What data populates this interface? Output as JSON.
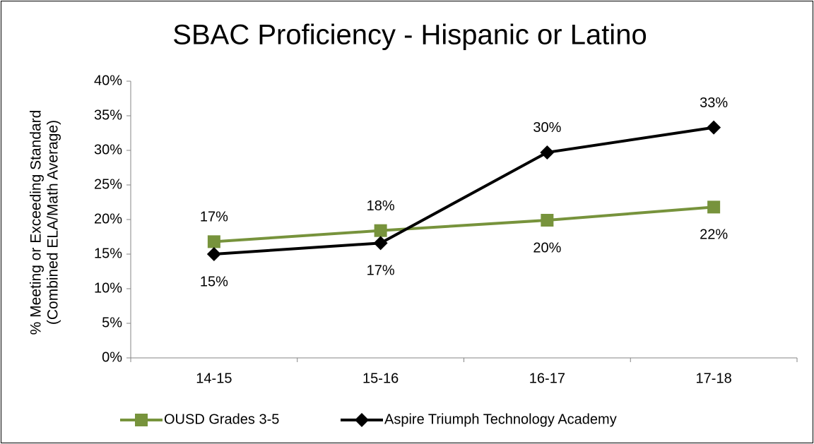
{
  "chart_data": {
    "type": "line",
    "title": "SBAC Proficiency - Hispanic or Latino",
    "ylabel": [
      "% Meeting or Exceeding Standard",
      "(Combined ELA/Math Average)"
    ],
    "categories": [
      "14-15",
      "15-16",
      "16-17",
      "17-18"
    ],
    "series": [
      {
        "name": "OUSD Grades 3-5",
        "color": "#77933c",
        "marker": "square",
        "values": [
          16.8,
          18.4,
          19.9,
          21.8
        ],
        "value_labels": [
          "17%",
          "18%",
          "20%",
          "22%"
        ]
      },
      {
        "name": "Aspire Triumph Technology Academy",
        "color": "#000000",
        "marker": "diamond",
        "values": [
          15.0,
          16.6,
          29.7,
          33.3
        ],
        "value_labels": [
          "15%",
          "17%",
          "30%",
          "33%"
        ]
      }
    ],
    "ylim": [
      0,
      40
    ],
    "yticks": [
      {
        "value": 0,
        "label": "0%"
      },
      {
        "value": 5,
        "label": "5%"
      },
      {
        "value": 10,
        "label": "10%"
      },
      {
        "value": 15,
        "label": "15%"
      },
      {
        "value": 20,
        "label": "20%"
      },
      {
        "value": 25,
        "label": "25%"
      },
      {
        "value": 30,
        "label": "30%"
      },
      {
        "value": 35,
        "label": "35%"
      },
      {
        "value": 40,
        "label": "40%"
      }
    ],
    "grid": false,
    "legend": "bottom"
  }
}
